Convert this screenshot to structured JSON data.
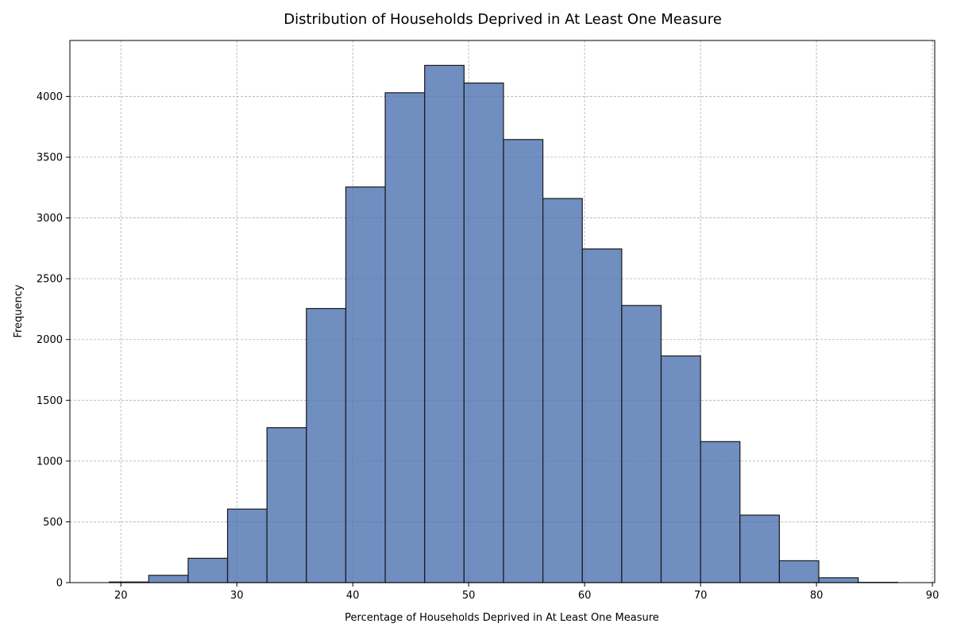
{
  "chart_data": {
    "type": "bar",
    "title": "Distribution of Households Deprived in At Least One Measure",
    "xlabel": "Percentage of Households Deprived in At Least One Measure",
    "ylabel": "Frequency",
    "xlim": [
      15.6,
      90.2
    ],
    "ylim": [
      0,
      4460
    ],
    "xticks": [
      20,
      30,
      40,
      50,
      60,
      70,
      80,
      90
    ],
    "yticks": [
      0,
      500,
      1000,
      1500,
      2000,
      2500,
      3000,
      3500,
      4000
    ],
    "grid": true,
    "bar_color": "#4c72b0",
    "edge_color": "#1a1a1a",
    "bins": [
      {
        "start": 19.0,
        "end": 22.4,
        "value": 5
      },
      {
        "start": 22.4,
        "end": 25.8,
        "value": 60
      },
      {
        "start": 25.8,
        "end": 29.2,
        "value": 200
      },
      {
        "start": 29.2,
        "end": 32.6,
        "value": 605
      },
      {
        "start": 32.6,
        "end": 36.0,
        "value": 1275
      },
      {
        "start": 36.0,
        "end": 39.4,
        "value": 2255
      },
      {
        "start": 39.4,
        "end": 42.8,
        "value": 3255
      },
      {
        "start": 42.8,
        "end": 46.2,
        "value": 4030
      },
      {
        "start": 46.2,
        "end": 49.6,
        "value": 4255
      },
      {
        "start": 49.6,
        "end": 53.0,
        "value": 4110
      },
      {
        "start": 53.0,
        "end": 56.4,
        "value": 3645
      },
      {
        "start": 56.4,
        "end": 59.8,
        "value": 3160
      },
      {
        "start": 59.8,
        "end": 63.2,
        "value": 2745
      },
      {
        "start": 63.2,
        "end": 66.6,
        "value": 2280
      },
      {
        "start": 66.6,
        "end": 70.0,
        "value": 1865
      },
      {
        "start": 70.0,
        "end": 73.4,
        "value": 1160
      },
      {
        "start": 73.4,
        "end": 76.8,
        "value": 555
      },
      {
        "start": 76.8,
        "end": 80.2,
        "value": 180
      },
      {
        "start": 80.2,
        "end": 83.6,
        "value": 40
      },
      {
        "start": 83.6,
        "end": 87.0,
        "value": 2
      }
    ]
  }
}
